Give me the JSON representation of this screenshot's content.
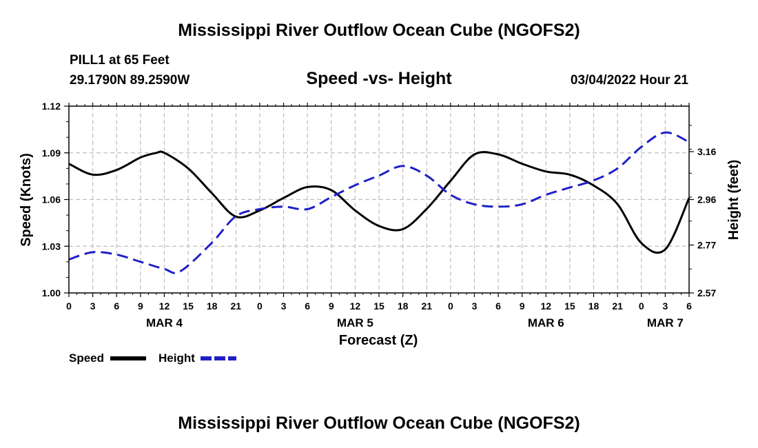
{
  "header": {
    "title": "Mississippi River Outflow Ocean Cube (NGOFS2)",
    "station": "PILL1 at 65 Feet",
    "coords": "29.1790N  89.2590W",
    "subtitle": "Speed -vs- Height",
    "datestamp": "03/04/2022 Hour 21"
  },
  "footer": {
    "title": "Mississippi River Outflow Ocean Cube (NGOFS2)"
  },
  "colors": {
    "speed": "#000000",
    "height": "#1f1fc8",
    "grid": "#bdbdbd"
  },
  "chart_data": {
    "type": "line",
    "title": "Speed -vs- Height",
    "xlabel": "Forecast (Z)",
    "ylabel": "Speed (Knots)",
    "y2label": "Height (feet)",
    "x_range": [
      0,
      78
    ],
    "x_ticks": [
      0,
      3,
      6,
      9,
      12,
      15,
      18,
      21,
      24,
      27,
      30,
      33,
      36,
      39,
      42,
      45,
      48,
      51,
      54,
      57,
      60,
      63,
      66,
      69,
      72,
      75,
      78
    ],
    "x_tick_labels": [
      "0",
      "3",
      "6",
      "9",
      "12",
      "15",
      "18",
      "21",
      "0",
      "3",
      "6",
      "9",
      "12",
      "15",
      "18",
      "21",
      "0",
      "3",
      "6",
      "9",
      "12",
      "15",
      "18",
      "21",
      "0",
      "3",
      "6"
    ],
    "day_labels": [
      {
        "x": 12,
        "label": "MAR 4"
      },
      {
        "x": 36,
        "label": "MAR 5"
      },
      {
        "x": 60,
        "label": "MAR 6"
      },
      {
        "x": 75,
        "label": "MAR 7"
      }
    ],
    "ylim": [
      1.0,
      1.12
    ],
    "y_ticks": [
      1.0,
      1.03,
      1.06,
      1.09,
      1.12
    ],
    "y_tick_labels": [
      "1.00",
      "1.03",
      "1.06",
      "1.09",
      "1.12"
    ],
    "y2lim": [
      2.57,
      3.35
    ],
    "y2_ticks": [
      2.57,
      2.77,
      2.96,
      3.16
    ],
    "y2_tick_labels": [
      "2.57",
      "2.77",
      "2.96",
      "3.16"
    ],
    "grid": true,
    "series": [
      {
        "name": "Speed",
        "axis": "left",
        "style": "solid",
        "x": [
          0,
          3,
          6,
          9,
          11,
          12,
          15,
          18,
          21,
          24,
          27,
          30,
          33,
          36,
          39,
          42,
          45,
          48,
          51,
          54,
          57,
          60,
          63,
          66,
          69,
          72,
          75,
          78
        ],
        "values": [
          1.083,
          1.076,
          1.079,
          1.087,
          1.09,
          1.09,
          1.08,
          1.064,
          1.049,
          1.053,
          1.061,
          1.068,
          1.066,
          1.053,
          1.043,
          1.041,
          1.054,
          1.072,
          1.089,
          1.089,
          1.083,
          1.078,
          1.076,
          1.069,
          1.057,
          1.032,
          1.028,
          1.061
        ]
      },
      {
        "name": "Height",
        "axis": "right",
        "style": "dashed",
        "x": [
          0,
          3,
          6,
          9,
          12,
          14,
          18,
          21,
          24,
          27,
          30,
          33,
          36,
          39,
          42,
          45,
          48,
          51,
          54,
          57,
          60,
          63,
          66,
          69,
          72,
          75,
          78
        ],
        "values": [
          2.71,
          2.74,
          2.73,
          2.7,
          2.67,
          2.66,
          2.78,
          2.89,
          2.92,
          2.93,
          2.92,
          2.97,
          3.02,
          3.06,
          3.1,
          3.06,
          2.98,
          2.94,
          2.93,
          2.94,
          2.98,
          3.01,
          3.04,
          3.09,
          3.18,
          3.24,
          3.2
        ]
      }
    ],
    "legend": [
      {
        "label": "Speed",
        "series": "Speed"
      },
      {
        "label": "Height",
        "series": "Height"
      }
    ],
    "legend_position": "bottom-left"
  }
}
